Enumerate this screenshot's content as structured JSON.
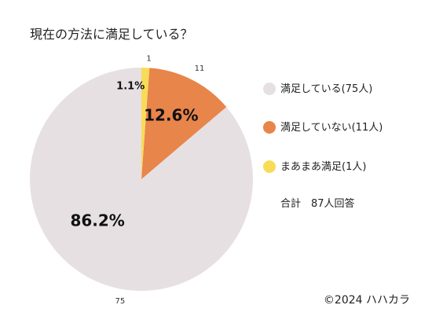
{
  "chart_data": {
    "type": "pie",
    "title": "現在の方法に満足している？",
    "slices": [
      {
        "legend": "満足している(75人)",
        "value": 75,
        "count_label": "75",
        "percent_label": "86.2%",
        "color": "#e6e0e3"
      },
      {
        "legend": "満足していない(11人)",
        "value": 11,
        "count_label": "11",
        "percent_label": "12.6%",
        "color": "#e8854a"
      },
      {
        "legend": "まあまあ満足(1人)",
        "value": 1,
        "count_label": "1",
        "percent_label": "1.1%",
        "color": "#f8dc58"
      }
    ],
    "total_label": "合計　87人回答",
    "legend_position": "right"
  },
  "footer": {
    "copyright": "©2024 ハハカラ"
  }
}
